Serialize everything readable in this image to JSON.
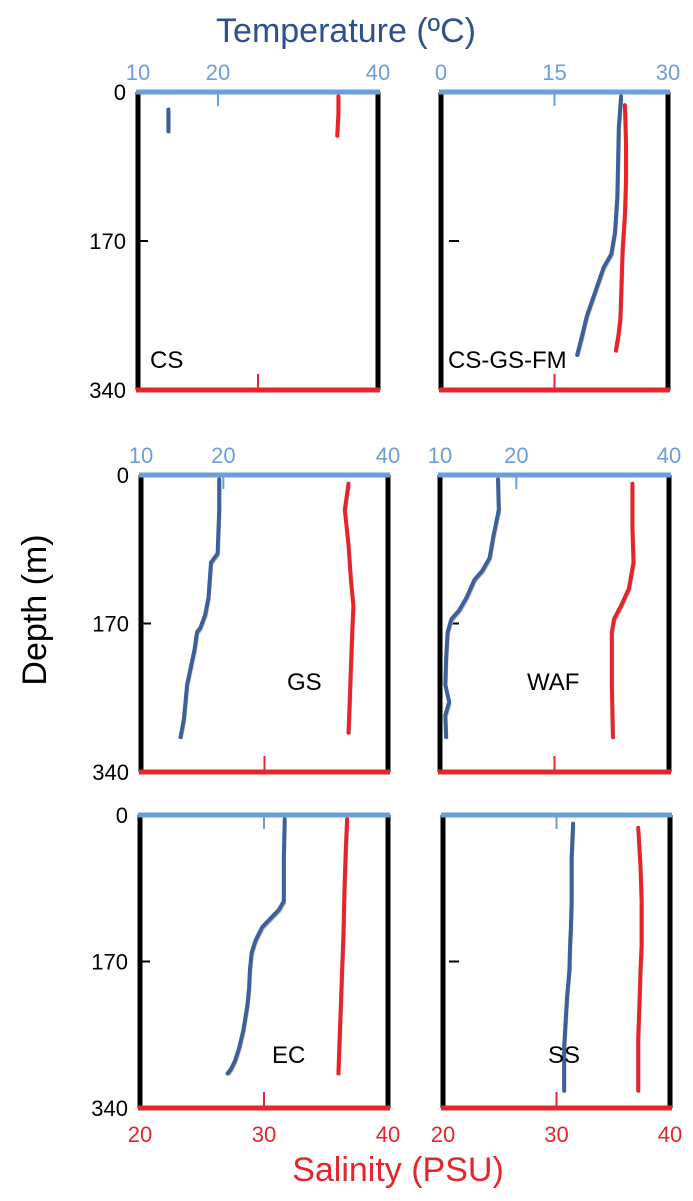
{
  "figure": {
    "top_label": "Temperature (ºC)",
    "left_label": "Depth (m)",
    "bottom_label": "Salinity (PSU)",
    "colors": {
      "temperature_axis": "#6a9fd8",
      "temperature_title": "#2f4f8f",
      "temperature_line": "#3d5f9a",
      "salinity": "#e8242b",
      "frame": "#000000",
      "noise": "#b4b4b4"
    }
  },
  "chart_data": [
    {
      "type": "line",
      "panel_label": "CS",
      "ylabel": "Depth (m)",
      "ylim": [
        340,
        0
      ],
      "temp_xlim": [
        10,
        40
      ],
      "temp_ticks": [
        "10",
        "20",
        "40"
      ],
      "sal_xlim": [
        20,
        40
      ],
      "sal_ticks": [],
      "depth_ticks": [
        "0",
        "170",
        "340"
      ],
      "series": [
        {
          "var": "temperature",
          "x": [
            13.8,
            13.8,
            13.8
          ],
          "y": [
            20,
            30,
            45
          ]
        },
        {
          "var": "salinity",
          "x": [
            36.7,
            36.7,
            36.6
          ],
          "y": [
            5,
            25,
            50
          ]
        }
      ]
    },
    {
      "type": "line",
      "panel_label": "CS-GS-FM",
      "ylim": [
        340,
        0
      ],
      "temp_xlim": [
        0,
        30
      ],
      "temp_ticks": [
        "0",
        "15",
        "30"
      ],
      "sal_xlim": [
        20,
        40
      ],
      "sal_ticks": [],
      "depth_ticks": [],
      "series": [
        {
          "var": "temperature",
          "x": [
            23.8,
            23.5,
            23.4,
            23.3,
            23.0,
            22.5,
            21.5,
            20.3,
            19.3,
            18.6,
            18.0
          ],
          "y": [
            5,
            40,
            80,
            120,
            160,
            185,
            200,
            230,
            255,
            280,
            300
          ]
        },
        {
          "var": "salinity",
          "x": [
            36.2,
            36.3,
            36.3,
            36.2,
            36.0,
            35.9,
            35.8,
            35.6,
            35.4
          ],
          "y": [
            15,
            60,
            100,
            140,
            180,
            220,
            260,
            280,
            295
          ]
        }
      ]
    },
    {
      "type": "line",
      "panel_label": "GS",
      "ylim": [
        340,
        0
      ],
      "temp_xlim": [
        10,
        40
      ],
      "temp_ticks": [
        "10",
        "20",
        "40"
      ],
      "sal_xlim": [
        20,
        40
      ],
      "sal_ticks": [],
      "depth_ticks": [
        "0",
        "170",
        "340"
      ],
      "series": [
        {
          "var": "temperature",
          "x": [
            19.5,
            19.5,
            19.3,
            18.5,
            18.2,
            17.8,
            17.2,
            16.8,
            16.5,
            15.6,
            15.4,
            15.2,
            15.0,
            14.8
          ],
          "y": [
            5,
            40,
            90,
            100,
            140,
            160,
            175,
            180,
            200,
            240,
            260,
            280,
            290,
            300
          ]
        },
        {
          "var": "salinity",
          "x": [
            36.8,
            36.5,
            36.8,
            37.0,
            37.2,
            37.1,
            37.0,
            36.9,
            36.8
          ],
          "y": [
            10,
            40,
            80,
            120,
            150,
            180,
            220,
            260,
            295
          ]
        }
      ]
    },
    {
      "type": "line",
      "panel_label": "WAF",
      "ylim": [
        340,
        0
      ],
      "temp_xlim": [
        10,
        40
      ],
      "temp_ticks": [
        "10",
        "20",
        "40"
      ],
      "sal_xlim": [
        20,
        40
      ],
      "sal_ticks": [],
      "depth_ticks": [],
      "series": [
        {
          "var": "temperature",
          "x": [
            17.6,
            17.7,
            17.0,
            16.5,
            15.5,
            14.5,
            13.5,
            12.5,
            11.5,
            11.0,
            10.8,
            10.7,
            11.2,
            10.7,
            10.8
          ],
          "y": [
            5,
            40,
            70,
            95,
            110,
            120,
            140,
            155,
            165,
            180,
            210,
            240,
            260,
            275,
            300
          ]
        },
        {
          "var": "salinity",
          "x": [
            36.8,
            36.8,
            36.9,
            36.5,
            35.8,
            35.2,
            35.0,
            35.0,
            35.1
          ],
          "y": [
            10,
            60,
            100,
            130,
            150,
            165,
            180,
            240,
            300
          ]
        }
      ]
    },
    {
      "type": "line",
      "panel_label": "EC",
      "ylabel": "Depth (m)",
      "ylim": [
        340,
        0
      ],
      "temp_xlim": [
        10,
        40
      ],
      "temp_ticks": [],
      "sal_xlim": [
        20,
        40
      ],
      "sal_ticks": [
        "20",
        "30",
        "40"
      ],
      "depth_ticks": [
        "0",
        "170",
        "340"
      ],
      "series": [
        {
          "var": "temperature",
          "x": [
            27.5,
            27.4,
            27.4,
            26.8,
            25.8,
            24.8,
            24.0,
            23.5,
            23.3,
            23.2,
            23.0,
            22.5,
            22.0,
            21.5,
            21.0,
            20.6
          ],
          "y": [
            5,
            50,
            100,
            110,
            120,
            130,
            145,
            160,
            180,
            200,
            220,
            250,
            270,
            285,
            295,
            300
          ]
        },
        {
          "var": "salinity",
          "x": [
            36.7,
            36.6,
            36.5,
            36.4,
            36.3,
            36.2,
            36.1,
            36.0
          ],
          "y": [
            5,
            40,
            80,
            140,
            180,
            220,
            260,
            300
          ]
        }
      ]
    },
    {
      "type": "line",
      "panel_label": "SS",
      "ylim": [
        340,
        0
      ],
      "temp_xlim": [
        10,
        40
      ],
      "temp_ticks": [],
      "sal_xlim": [
        20,
        40
      ],
      "sal_ticks": [
        "20",
        "30",
        "40"
      ],
      "depth_ticks": [],
      "series": [
        {
          "var": "temperature",
          "x": [
            27.2,
            27.0,
            27.0,
            26.9,
            26.8,
            26.7,
            26.4,
            26.2,
            26.0,
            26.0,
            26.0
          ],
          "y": [
            10,
            50,
            100,
            130,
            150,
            180,
            210,
            240,
            270,
            300,
            320
          ]
        },
        {
          "var": "salinity",
          "x": [
            37.2,
            37.4,
            37.5,
            37.5,
            37.4,
            37.3,
            37.2,
            37.2,
            37.2
          ],
          "y": [
            15,
            60,
            100,
            150,
            180,
            220,
            260,
            300,
            320
          ]
        }
      ]
    }
  ]
}
